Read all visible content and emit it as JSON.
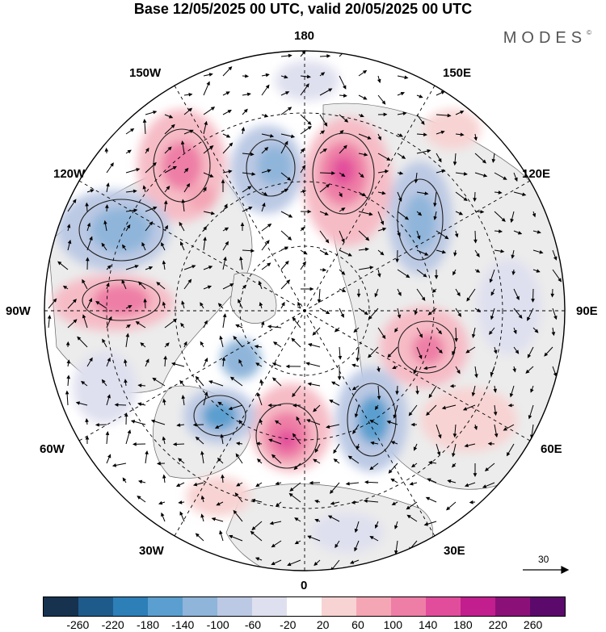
{
  "title": "Base 12/05/2025 00 UTC, valid 20/05/2025 00 UTC",
  "brand": "MODES",
  "brand_mark": "©",
  "longitude_labels": {
    "n180": "180",
    "w150": "150W",
    "e150": "150E",
    "w120": "120W",
    "e120": "120E",
    "w90": "90W",
    "e90": "90E",
    "w60": "60W",
    "e60": "60E",
    "w30": "30W",
    "e30": "30E",
    "s0": "0"
  },
  "reference_vector": "30",
  "colorbar": {
    "colors": [
      "#16324f",
      "#1f5b8a",
      "#2d7fb8",
      "#5a9fcf",
      "#8fb5da",
      "#bcc9e4",
      "#dfe0ef",
      "#ffffff",
      "#f8d3d3",
      "#f4a6b5",
      "#ee7ea6",
      "#e24d9b",
      "#c21e8e",
      "#8b1179",
      "#5b0a6b"
    ],
    "ticks": [
      "-260",
      "-220",
      "-180",
      "-140",
      "-100",
      "-60",
      "-20",
      "20",
      "60",
      "100",
      "140",
      "180",
      "220",
      "260"
    ]
  }
}
